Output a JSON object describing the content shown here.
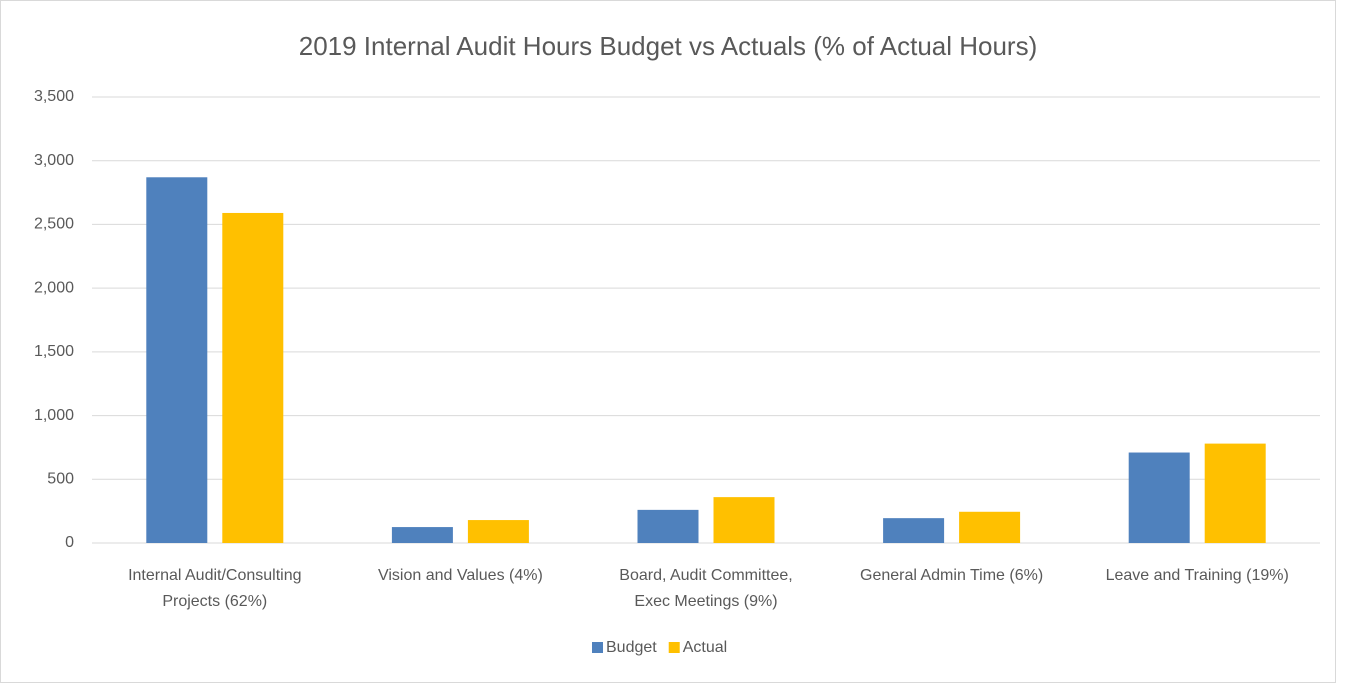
{
  "chart_data": {
    "type": "bar",
    "title": "2019 Internal Audit Hours Budget vs Actuals (% of Actual Hours)",
    "categories": [
      [
        "Internal Audit/Consulting",
        "Projects (62%)"
      ],
      [
        "Vision and Values (4%)"
      ],
      [
        "Board, Audit Committee,",
        "Exec Meetings (9%)"
      ],
      [
        "General Admin Time (6%)"
      ],
      [
        "Leave and Training (19%)"
      ]
    ],
    "series": [
      {
        "name": "Budget",
        "color": "#4f81bd",
        "values": [
          2870,
          125,
          260,
          195,
          710
        ]
      },
      {
        "name": "Actual",
        "color": "#ffc000",
        "values": [
          2590,
          180,
          360,
          245,
          780
        ]
      }
    ],
    "ylim": [
      0,
      3500
    ],
    "yticks": [
      0,
      500,
      {
        "value": 1000,
        "label": "1,000"
      },
      {
        "value": 1500,
        "label": "1,500"
      },
      {
        "value": 2000,
        "label": "2,000"
      },
      {
        "value": 2500,
        "label": "2,500"
      },
      {
        "value": 3000,
        "label": "3,000"
      },
      {
        "value": 3500,
        "label": "3,500"
      }
    ],
    "grid": true,
    "legend": "bottom"
  }
}
